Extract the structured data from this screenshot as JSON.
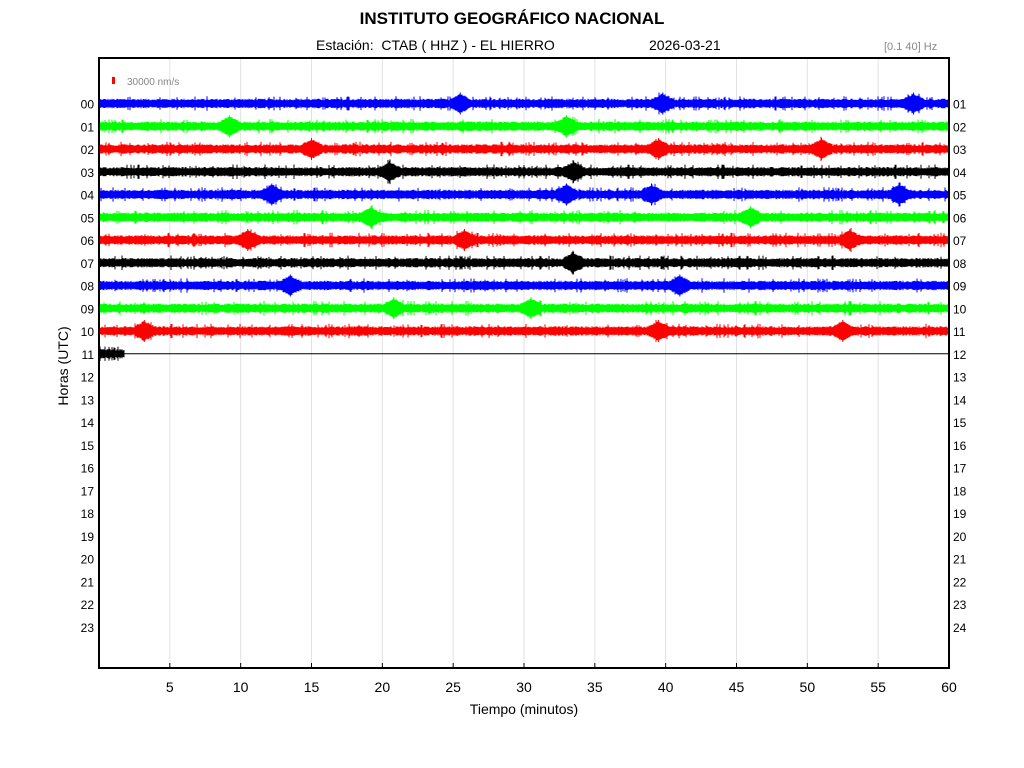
{
  "header": {
    "title": "INSTITUTO GEOGRÁFICO NACIONAL",
    "station_line": "Estación:  CTAB ( HHZ ) - EL HIERRO",
    "date": "2026-03-21",
    "filter": "[0.1 40] Hz"
  },
  "chart_data": {
    "type": "line",
    "title": "INSTITUTO GEOGRÁFICO NACIONAL",
    "xlabel": "Tiempo (minutos)",
    "ylabel": "Horas (UTC)",
    "xlim": [
      0,
      60
    ],
    "x_ticks": [
      5,
      10,
      15,
      20,
      25,
      30,
      35,
      40,
      45,
      50,
      55,
      60
    ],
    "grid": true,
    "scale_bar_label": "30000 nm/s",
    "left_labels": [
      "00",
      "01",
      "02",
      "03",
      "04",
      "05",
      "06",
      "07",
      "08",
      "09",
      "10",
      "11",
      "12",
      "13",
      "14",
      "15",
      "16",
      "17",
      "18",
      "19",
      "20",
      "21",
      "22",
      "23"
    ],
    "right_labels": [
      "01",
      "02",
      "03",
      "04",
      "05",
      "06",
      "07",
      "08",
      "09",
      "10",
      "11",
      "12",
      "13",
      "14",
      "15",
      "16",
      "17",
      "18",
      "19",
      "20",
      "21",
      "22",
      "23",
      "24"
    ],
    "trace_colors": [
      "#0000ff",
      "#00ff00",
      "#ff0000",
      "#000000"
    ],
    "last_trace_end_minutes": 1.8,
    "traces_minutes": [
      {
        "hour": "00",
        "color": "#0000ff",
        "events": [
          25.5,
          39.8,
          57.5
        ]
      },
      {
        "hour": "01",
        "color": "#00ff00",
        "events": [
          9.2,
          33.0
        ]
      },
      {
        "hour": "02",
        "color": "#ff0000",
        "events": [
          15.0,
          39.5,
          51.0
        ]
      },
      {
        "hour": "03",
        "color": "#000000",
        "events": [
          20.5,
          33.5
        ]
      },
      {
        "hour": "04",
        "color": "#0000ff",
        "events": [
          12.2,
          33.0,
          39.0,
          56.5
        ]
      },
      {
        "hour": "05",
        "color": "#00ff00",
        "events": [
          19.2,
          46.0
        ]
      },
      {
        "hour": "06",
        "color": "#ff0000",
        "events": [
          10.5,
          25.8,
          53.0
        ]
      },
      {
        "hour": "07",
        "color": "#000000",
        "events": [
          33.5
        ]
      },
      {
        "hour": "08",
        "color": "#0000ff",
        "events": [
          13.5,
          41.0
        ]
      },
      {
        "hour": "09",
        "color": "#00ff00",
        "events": [
          20.8,
          30.5
        ]
      },
      {
        "hour": "10",
        "color": "#ff0000",
        "events": [
          3.2,
          39.5,
          52.5
        ]
      },
      {
        "hour": "11",
        "color": "#000000",
        "events": []
      }
    ]
  }
}
